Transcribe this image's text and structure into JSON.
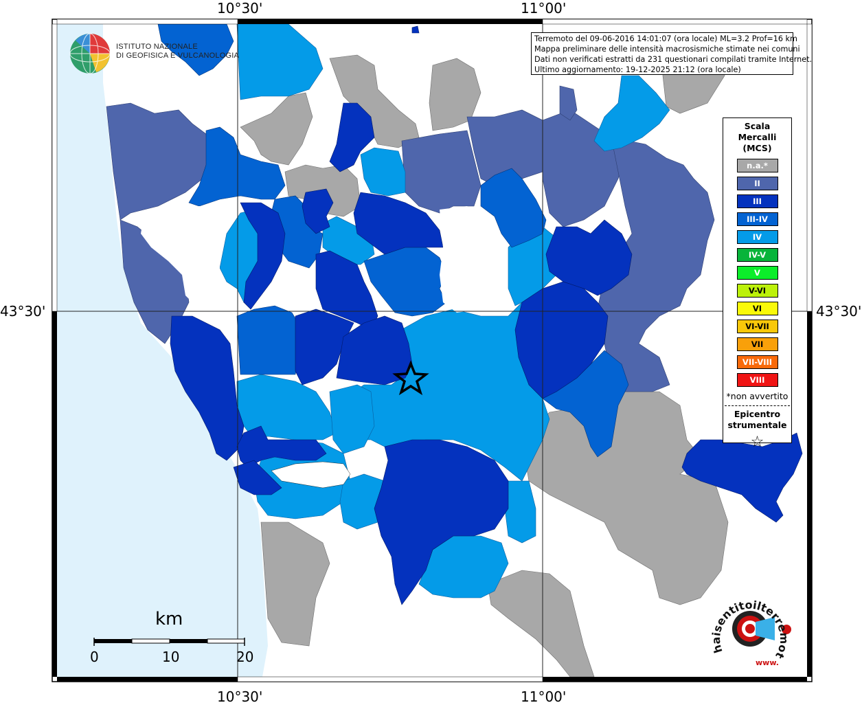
{
  "header": {
    "lines": [
      "Terremoto del 09-06-2016 14:01:07 (ora locale) ML=3.2 Prof=16 km",
      "Mappa preliminare delle intensità macrosismiche stimate nei comuni",
      "Dati non verificati estratti da 231 questionari compilati tramite Internet.",
      "Ultimo aggiornamento: 19-12-2025 21:12 (ora locale)"
    ]
  },
  "coords": {
    "top_left": "10°30'",
    "top_right": "11°00'",
    "bottom_left": "10°30'",
    "bottom_right": "11°00'",
    "left_lat": "43°30'",
    "right_lat": "43°30'"
  },
  "logo": {
    "line1": "ISTITUTO NAZIONALE",
    "line2": "DI GEOFISICA E VULCANOLOGIA"
  },
  "legend": {
    "title_1": "Scala",
    "title_2": "Mercalli",
    "title_3": "(MCS)",
    "items": [
      {
        "label": "n.a.*",
        "color": "#a8a8a8"
      },
      {
        "label": "II",
        "color": "#4f66ac"
      },
      {
        "label": "III",
        "color": "#0432be"
      },
      {
        "label": "III-IV",
        "color": "#0363d2"
      },
      {
        "label": "IV",
        "color": "#049be8"
      },
      {
        "label": "IV-V",
        "color": "#07b43a"
      },
      {
        "label": "V",
        "color": "#0cee2a"
      },
      {
        "label": "V-VI",
        "color": "#bcf10a"
      },
      {
        "label": "VI",
        "color": "#f9f90a"
      },
      {
        "label": "VI-VII",
        "color": "#f9c80a"
      },
      {
        "label": "VII",
        "color": "#f9a00a"
      },
      {
        "label": "VII-VIII",
        "color": "#f96a0a"
      },
      {
        "label": "VIII",
        "color": "#f01414"
      }
    ],
    "note": "*non avvertito",
    "epicentro_1": "Epicentro",
    "epicentro_2": "strumentale",
    "star": "☆"
  },
  "scale": {
    "unit": "km",
    "labels": [
      "0",
      "10",
      "20"
    ]
  },
  "branding": {
    "hsit": "haisentitoilterremoto.it",
    "www": "www."
  },
  "colors": {
    "sea": "#dff2fc",
    "gray": "#a8a8a8",
    "ii": "#4f66ac",
    "iii": "#0432be",
    "iii_iv": "#0363d2",
    "iv": "#049be8"
  }
}
